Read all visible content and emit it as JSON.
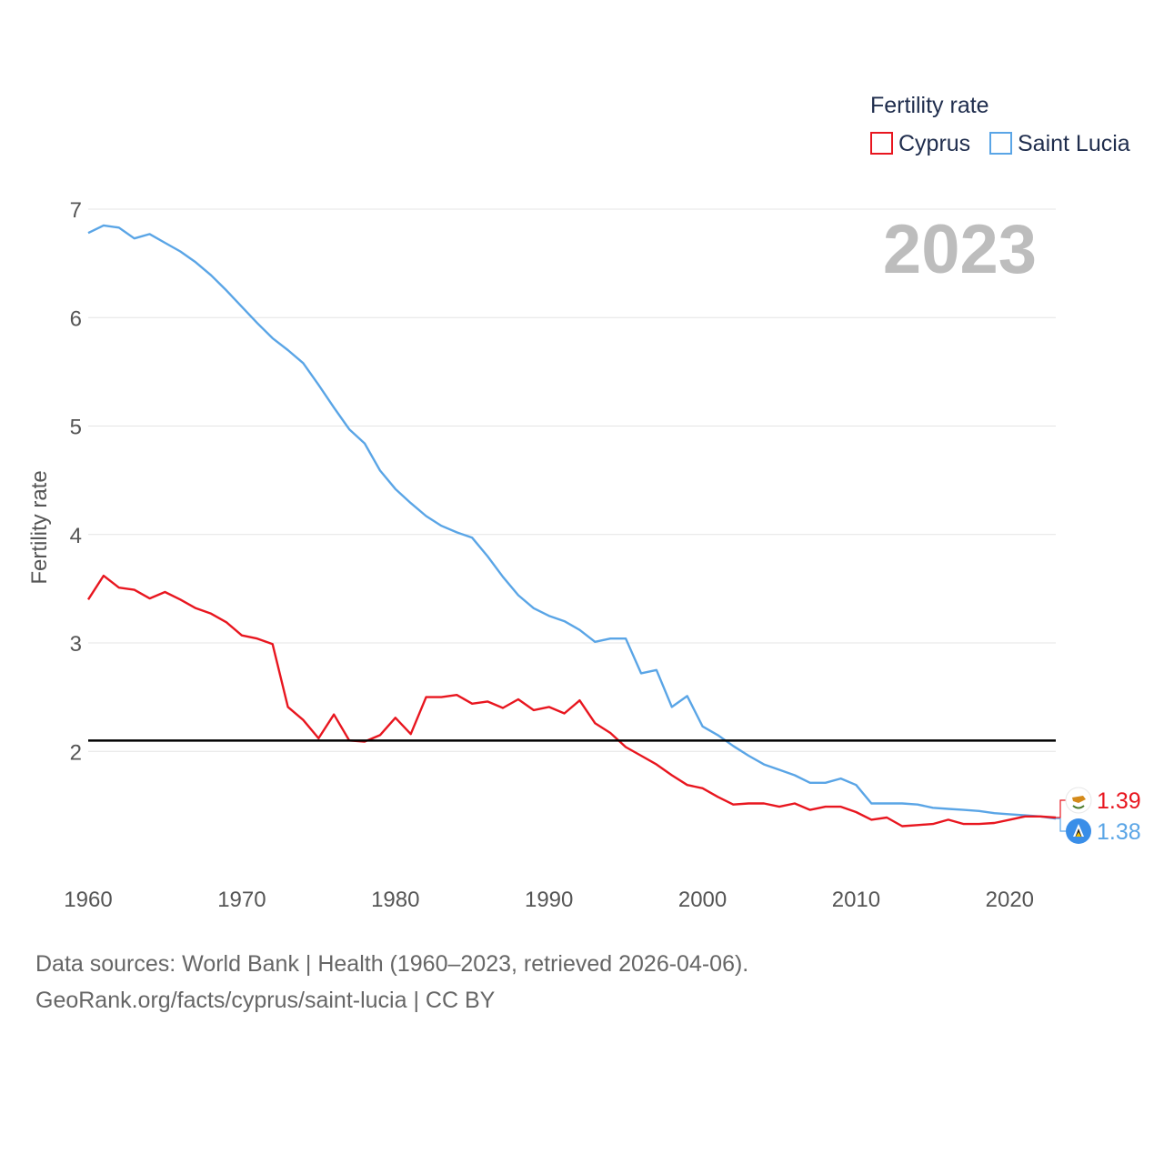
{
  "chart_data": {
    "type": "line",
    "legend_title": "Fertility rate",
    "ylabel": "Fertility rate",
    "xlabel": "",
    "year_label": "2023",
    "xlim": [
      1960,
      2023
    ],
    "ylim": [
      1,
      7
    ],
    "x_ticks": [
      "1960",
      "1970",
      "1980",
      "1990",
      "2000",
      "2010",
      "2020"
    ],
    "y_ticks": [
      "2",
      "3",
      "4",
      "5",
      "6",
      "7"
    ],
    "reference_line": 2.1,
    "legend_position": "top-right",
    "x": [
      1960,
      1961,
      1962,
      1963,
      1964,
      1965,
      1966,
      1967,
      1968,
      1969,
      1970,
      1971,
      1972,
      1973,
      1974,
      1975,
      1976,
      1977,
      1978,
      1979,
      1980,
      1981,
      1982,
      1983,
      1984,
      1985,
      1986,
      1987,
      1988,
      1989,
      1990,
      1991,
      1992,
      1993,
      1994,
      1995,
      1996,
      1997,
      1998,
      1999,
      2000,
      2001,
      2002,
      2003,
      2004,
      2005,
      2006,
      2007,
      2008,
      2009,
      2010,
      2011,
      2012,
      2013,
      2014,
      2015,
      2016,
      2017,
      2018,
      2019,
      2020,
      2021,
      2022,
      2023
    ],
    "series": [
      {
        "name": "Cyprus",
        "color": "#e8161f",
        "end_label": "1.39",
        "values": [
          3.4,
          3.62,
          3.51,
          3.49,
          3.41,
          3.47,
          3.4,
          3.32,
          3.27,
          3.19,
          3.07,
          3.04,
          2.99,
          2.41,
          2.29,
          2.12,
          2.34,
          2.1,
          2.09,
          2.15,
          2.31,
          2.16,
          2.5,
          2.5,
          2.52,
          2.44,
          2.46,
          2.4,
          2.48,
          2.38,
          2.41,
          2.35,
          2.47,
          2.26,
          2.17,
          2.04,
          1.96,
          1.88,
          1.78,
          1.69,
          1.66,
          1.58,
          1.51,
          1.52,
          1.52,
          1.49,
          1.52,
          1.46,
          1.49,
          1.49,
          1.44,
          1.37,
          1.39,
          1.31,
          1.32,
          1.33,
          1.37,
          1.33,
          1.33,
          1.34,
          1.37,
          1.4,
          1.4,
          1.39
        ]
      },
      {
        "name": "Saint Lucia",
        "color": "#5aa5e6",
        "end_label": "1.38",
        "values": [
          6.78,
          6.85,
          6.83,
          6.73,
          6.77,
          6.69,
          6.61,
          6.51,
          6.39,
          6.25,
          6.1,
          5.95,
          5.81,
          5.7,
          5.58,
          5.38,
          5.17,
          4.97,
          4.84,
          4.59,
          4.42,
          4.29,
          4.17,
          4.08,
          4.02,
          3.97,
          3.8,
          3.61,
          3.44,
          3.32,
          3.25,
          3.2,
          3.12,
          3.01,
          3.04,
          3.04,
          2.72,
          2.75,
          2.41,
          2.51,
          2.23,
          2.15,
          2.05,
          1.96,
          1.88,
          1.83,
          1.78,
          1.71,
          1.71,
          1.75,
          1.69,
          1.52,
          1.52,
          1.52,
          1.51,
          1.48,
          1.47,
          1.46,
          1.45,
          1.43,
          1.42,
          1.41,
          1.4,
          1.38
        ]
      }
    ],
    "sources": [
      "Data sources: World Bank | Health (1960–2023, retrieved 2026-04-06).",
      "GeoRank.org/facts/cyprus/saint-lucia | CC BY"
    ]
  }
}
